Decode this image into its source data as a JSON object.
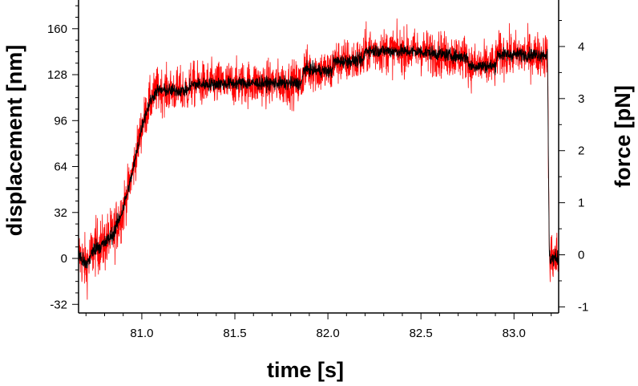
{
  "chart_data": {
    "type": "line",
    "xlabel": "time [s]",
    "ylabel": "displacement [nm]",
    "y2label": "force [pN]",
    "xlim": [
      80.66,
      83.24
    ],
    "ylim": [
      -38,
      180
    ],
    "y2lim": [
      -1.117,
      4.893
    ],
    "x_ticks": [
      {
        "value": 81.0,
        "label": "81.0"
      },
      {
        "value": 81.5,
        "label": "81.5"
      },
      {
        "value": 82.0,
        "label": "82.0"
      },
      {
        "value": 82.5,
        "label": "82.5"
      },
      {
        "value": 83.0,
        "label": "83.0"
      }
    ],
    "y_ticks": [
      {
        "value": -32,
        "label": "-32"
      },
      {
        "value": 0,
        "label": "0"
      },
      {
        "value": 32,
        "label": "32"
      },
      {
        "value": 64,
        "label": "64"
      },
      {
        "value": 96,
        "label": "96"
      },
      {
        "value": 128,
        "label": "128"
      },
      {
        "value": 160,
        "label": "160"
      }
    ],
    "y2_ticks": [
      {
        "value": -1,
        "label": "-1"
      },
      {
        "value": 0,
        "label": "0"
      },
      {
        "value": 1,
        "label": "1"
      },
      {
        "value": 2,
        "label": "2"
      },
      {
        "value": 3,
        "label": "3"
      },
      {
        "value": 4,
        "label": "4"
      }
    ],
    "grid": false,
    "series": [
      {
        "color": "#ff0000",
        "style": "raw trace",
        "noise_amplitude": 14,
        "x": [
          80.66,
          80.7,
          80.75,
          80.8,
          80.85,
          80.9,
          80.95,
          81.0,
          81.04,
          81.08,
          81.25,
          81.26,
          81.5,
          81.86,
          81.87,
          82.02,
          82.03,
          82.19,
          82.2,
          82.5,
          82.75,
          82.76,
          82.9,
          82.91,
          83.18,
          83.19,
          83.24
        ],
        "y": [
          3,
          -5,
          8,
          10,
          18,
          35,
          60,
          92,
          108,
          117,
          117,
          121,
          122,
          122,
          132,
          130,
          137,
          138,
          145,
          144,
          140,
          134,
          134,
          142,
          142,
          0,
          0
        ]
      },
      {
        "color": "#000000",
        "style": "smoothed trace",
        "noise_amplitude": 4,
        "x": [
          80.66,
          80.7,
          80.75,
          80.8,
          80.85,
          80.9,
          80.95,
          81.0,
          81.04,
          81.08,
          81.25,
          81.26,
          81.5,
          81.86,
          81.87,
          82.02,
          82.03,
          82.19,
          82.2,
          82.5,
          82.75,
          82.76,
          82.9,
          82.91,
          83.18,
          83.19,
          83.24
        ],
        "y": [
          3,
          -5,
          8,
          10,
          18,
          35,
          60,
          92,
          108,
          117,
          117,
          121,
          122,
          122,
          132,
          130,
          137,
          138,
          145,
          144,
          140,
          134,
          134,
          142,
          142,
          0,
          0
        ]
      }
    ]
  }
}
